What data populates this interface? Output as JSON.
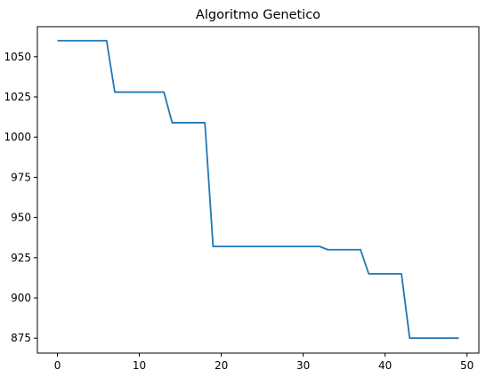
{
  "chart_data": {
    "type": "line",
    "title": "Algoritmo Genetico",
    "xlabel": "",
    "ylabel": "",
    "xlim": [
      -2.45,
      51.45
    ],
    "ylim": [
      865.7,
      1068.7
    ],
    "x_ticks": [
      0,
      10,
      20,
      30,
      40,
      50
    ],
    "y_ticks": [
      875,
      900,
      925,
      950,
      975,
      1000,
      1025,
      1050
    ],
    "grid": false,
    "line_color": "#1f77b4",
    "series": [
      {
        "x": [
          0,
          1,
          2,
          3,
          4,
          5,
          6,
          7,
          8,
          9,
          10,
          11,
          12,
          13,
          14,
          15,
          16,
          17,
          18,
          19,
          20,
          21,
          22,
          23,
          24,
          25,
          26,
          27,
          28,
          29,
          30,
          31,
          32,
          33,
          34,
          35,
          36,
          37,
          38,
          39,
          40,
          41,
          42,
          43,
          44,
          45,
          46,
          47,
          48,
          49
        ],
        "values": [
          1060,
          1060,
          1060,
          1060,
          1060,
          1060,
          1060,
          1028,
          1028,
          1028,
          1028,
          1028,
          1028,
          1028,
          1009,
          1009,
          1009,
          1009,
          1009,
          932,
          932,
          932,
          932,
          932,
          932,
          932,
          932,
          932,
          932,
          932,
          932,
          932,
          932,
          930,
          930,
          930,
          930,
          930,
          915,
          915,
          915,
          915,
          915,
          875,
          875,
          875,
          875,
          875,
          875,
          875
        ]
      }
    ]
  }
}
